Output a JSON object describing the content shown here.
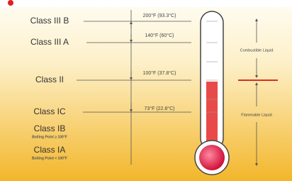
{
  "classes": [
    {
      "label": "Class III B"
    },
    {
      "label": "Class III A"
    },
    {
      "label": "Class II"
    },
    {
      "label": "Class IC"
    },
    {
      "label": "Class IB",
      "note": "Boiling Point ≥ 100°F"
    },
    {
      "label": "Class IA",
      "note": "Boiling Point < 100°F"
    }
  ],
  "temperatures": [
    "200°F (93.3°C)",
    "140°F (60°C)",
    "100°F (37.8°C)",
    "73°F (22.8°C)"
  ],
  "ranges": [
    "Combustible Liquid",
    "Flammable Liquid"
  ]
}
